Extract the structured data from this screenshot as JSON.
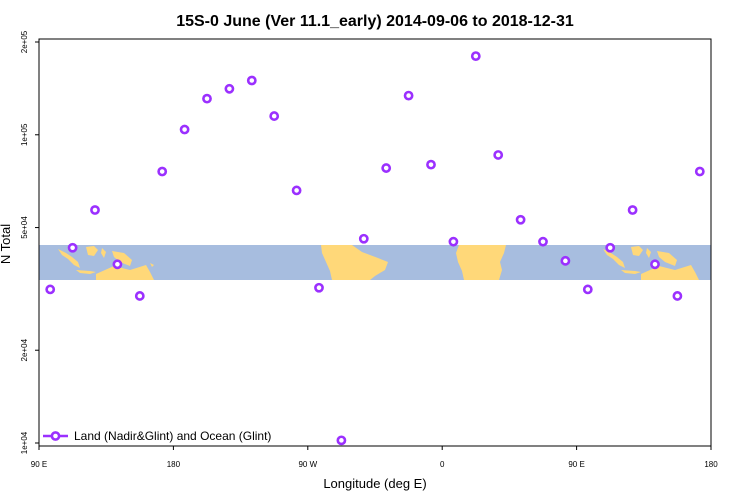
{
  "chart_data": {
    "type": "scatter",
    "title": "15S-0 June (Ver 11.1_early)   2014-09-06 to 2018-12-31",
    "xlabel": "Longitude (deg E)",
    "ylabel": "N Total",
    "x_ticks": [
      "90 E",
      "180",
      "90 W",
      "0",
      "90 E",
      "180"
    ],
    "y_ticks": [
      "1e+04",
      "2e+04",
      "5e+04",
      "1e+05",
      "2e+05"
    ],
    "xlim": [
      90,
      540
    ],
    "ylim": [
      10000,
      200000
    ],
    "y_scale": "log",
    "grid": false,
    "legend_position": "bottom-left",
    "series": [
      {
        "name": "Land (Nadir&Glint) and Ocean (Glint)",
        "color": "#9b30ff",
        "x": [
          97.5,
          112.5,
          127.5,
          142.5,
          157.5,
          172.5,
          187.5,
          202.5,
          217.5,
          232.5,
          247.5,
          262.5,
          277.5,
          292.5,
          307.5,
          322.5,
          337.5,
          352.5,
          367.5,
          382.5,
          397.5,
          412.5,
          427.5,
          442.5,
          457.5,
          472.5,
          487.5,
          502.5,
          517.5,
          532.5
        ],
        "y": [
          31500,
          43000,
          57000,
          38000,
          30000,
          76000,
          104000,
          131000,
          141000,
          150000,
          115000,
          66000,
          31900,
          10200,
          46000,
          78000,
          134000,
          80000,
          45000,
          180000,
          86000,
          53000,
          45000,
          39000,
          31500,
          43000,
          57000,
          38000,
          30000,
          76000
        ]
      }
    ],
    "background_map": {
      "ocean_color": "#a7bddf",
      "land_color": "#ffd879",
      "lat_range": "15S-0"
    }
  }
}
